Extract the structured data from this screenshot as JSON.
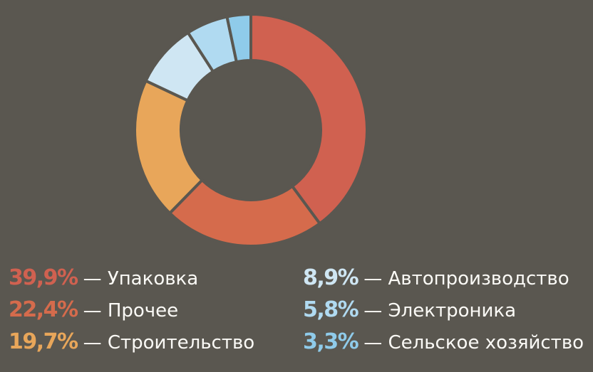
{
  "chart_data": {
    "type": "pie",
    "donut": true,
    "start": "top, clockwise",
    "slices": [
      {
        "label": "Упаковка",
        "value": 39.9,
        "display": "39,9%",
        "color": "#d06150"
      },
      {
        "label": "Прочее",
        "value": 22.4,
        "display": "22,4%",
        "color": "#d56b4c"
      },
      {
        "label": "Строительство",
        "value": 19.7,
        "display": "19,7%",
        "color": "#e8a65a"
      },
      {
        "label": "Автопроизводство",
        "value": 8.9,
        "display": "8,9%",
        "color": "#cfe6f3"
      },
      {
        "label": "Электроника",
        "value": 5.8,
        "display": "5,8%",
        "color": "#b0daf1"
      },
      {
        "label": "Сельское хозяйство",
        "value": 3.3,
        "display": "3,3%",
        "color": "#8fcbea"
      }
    ],
    "separator": "—",
    "legend_placement": "bottom, two columns"
  },
  "colors": {
    "background": "#5a5750",
    "label_text": "#fbfaf6"
  }
}
